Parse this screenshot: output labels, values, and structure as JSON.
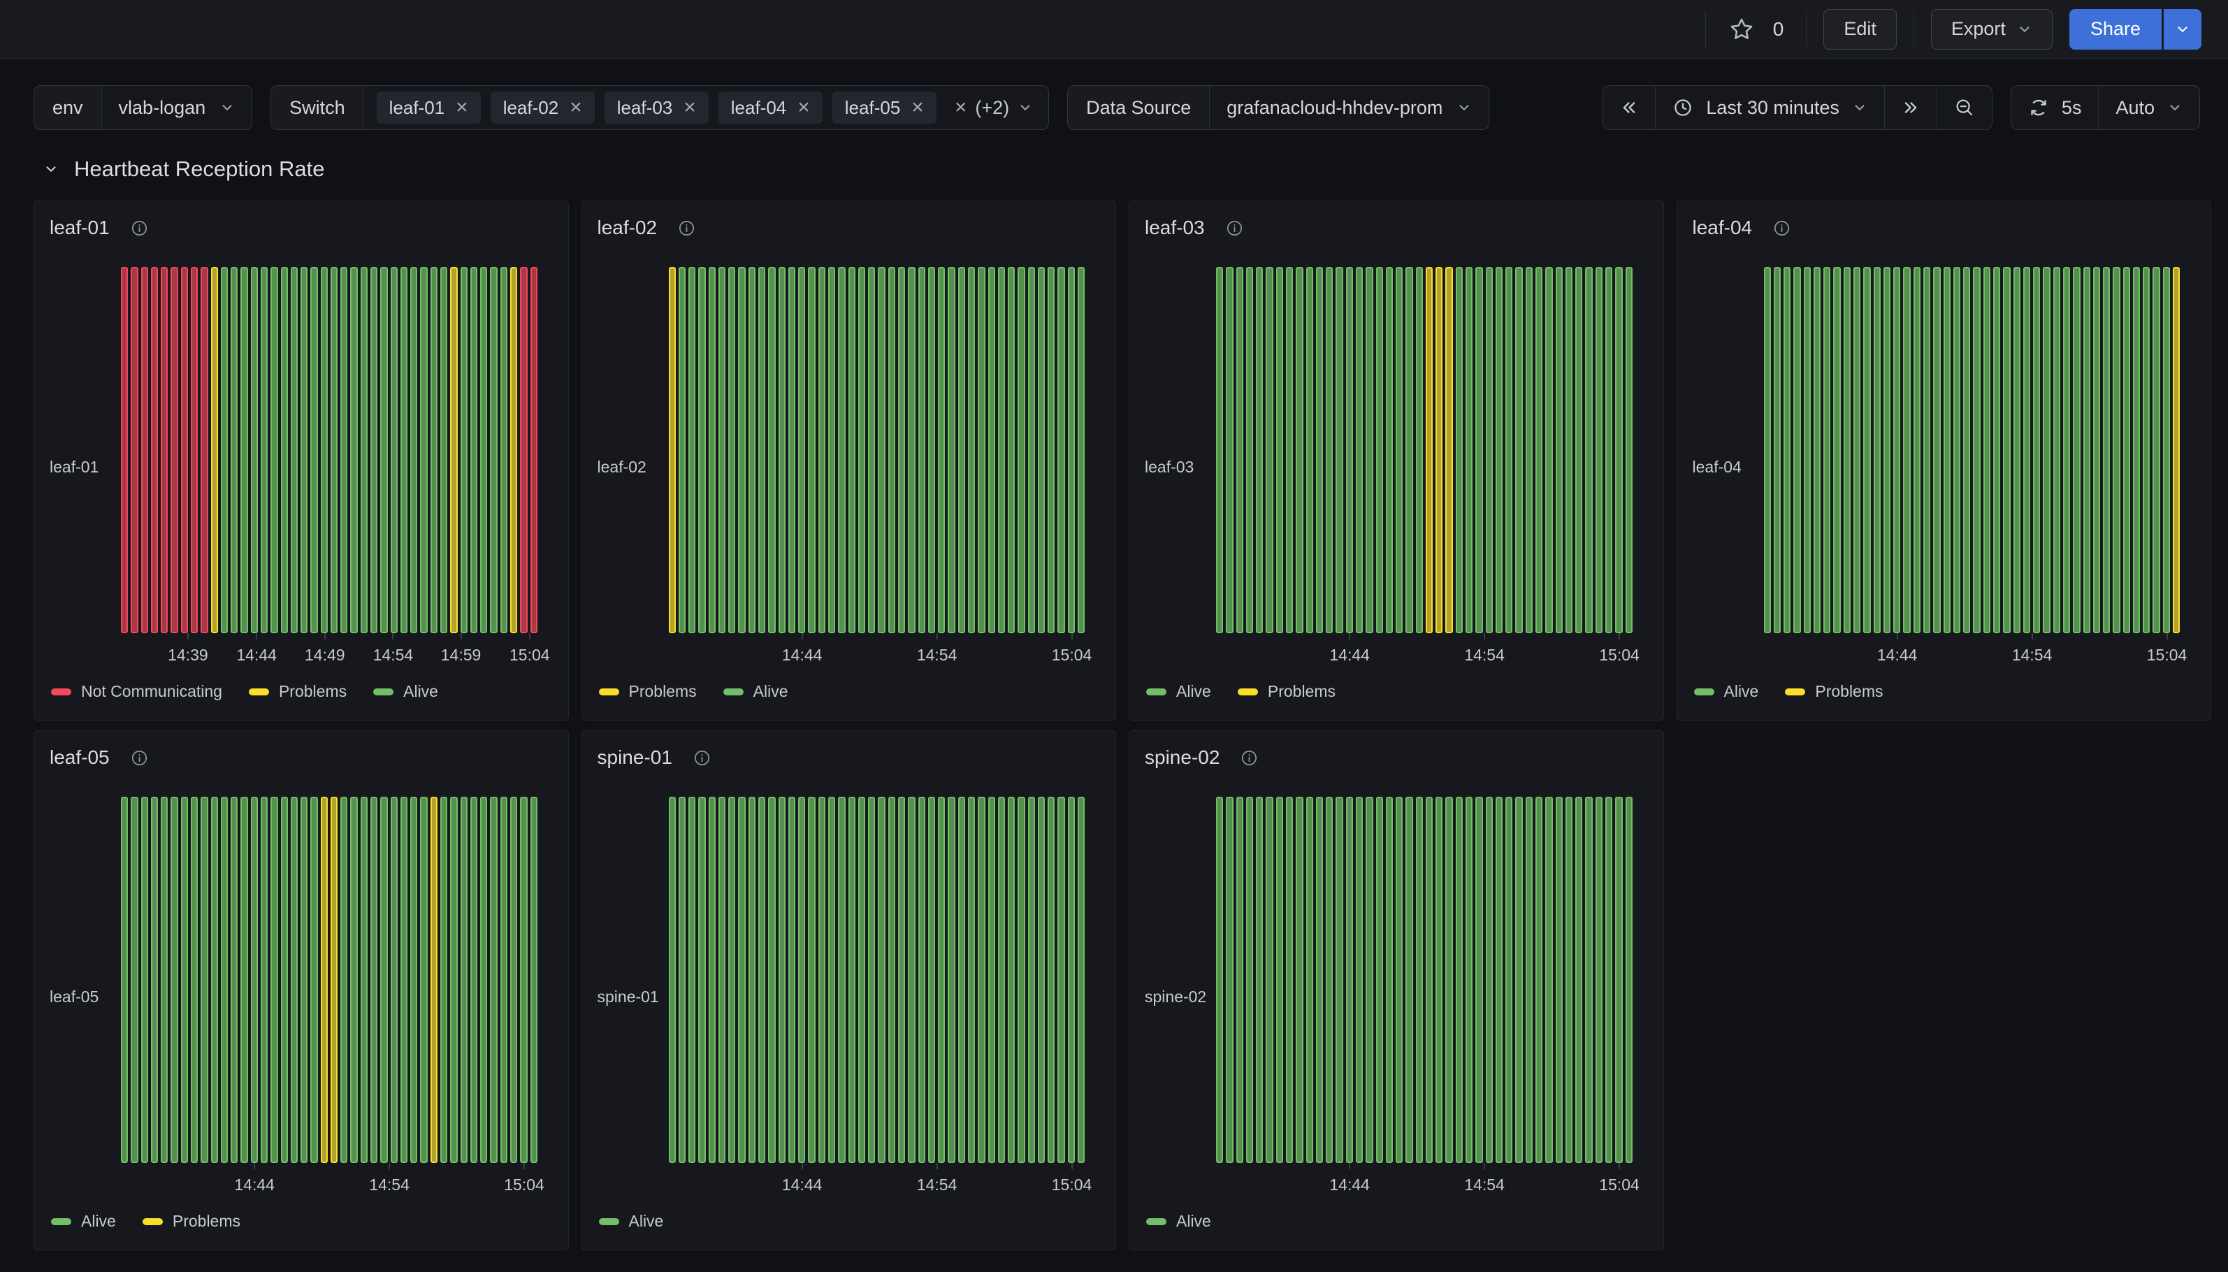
{
  "toolbar": {
    "star_count": "0",
    "edit_label": "Edit",
    "export_label": "Export",
    "share_label": "Share"
  },
  "filters": {
    "env": {
      "label": "env",
      "value": "vlab-logan"
    },
    "switch": {
      "label": "Switch",
      "tags": [
        "leaf-01",
        "leaf-02",
        "leaf-03",
        "leaf-04",
        "leaf-05"
      ],
      "more_label": "(+2)"
    },
    "datasource": {
      "label": "Data Source",
      "value": "grafanacloud-hhdev-prom"
    }
  },
  "timebar": {
    "range_label": "Last 30 minutes",
    "interval_label": "5s",
    "refresh_mode_label": "Auto"
  },
  "section": {
    "title": "Heartbeat Reception Rate"
  },
  "chart_data": {
    "type": "state-timeline",
    "time_axis": {
      "start": "14:35",
      "end": "15:05",
      "bars_per_panel": 42
    },
    "states": {
      "g": {
        "name": "Alive",
        "color": "#73BF69",
        "fill": "#55904F"
      },
      "y": {
        "name": "Problems",
        "color": "#FADE2A",
        "fill": "#B3A32C"
      },
      "r": {
        "name": "Not Communicating",
        "color": "#F2495C",
        "fill": "#A93945"
      }
    },
    "panels": [
      {
        "title": "leaf-01",
        "ylabel": "leaf-01",
        "x_ticks": [
          {
            "label": "14:39",
            "pos": 16.1
          },
          {
            "label": "14:44",
            "pos": 32.6
          },
          {
            "label": "14:49",
            "pos": 49.0
          },
          {
            "label": "14:54",
            "pos": 65.4
          },
          {
            "label": "14:59",
            "pos": 81.7
          },
          {
            "label": "15:04",
            "pos": 98.2
          }
        ],
        "legend": [
          {
            "state": "r",
            "label": "Not Communicating"
          },
          {
            "state": "y",
            "label": "Problems"
          },
          {
            "state": "g",
            "label": "Alive"
          }
        ],
        "runs": [
          [
            "r",
            9
          ],
          [
            "y",
            1
          ],
          [
            "g",
            23
          ],
          [
            "y",
            1
          ],
          [
            "g",
            5
          ],
          [
            "y",
            1
          ],
          [
            "r",
            2
          ]
        ]
      },
      {
        "title": "leaf-02",
        "ylabel": "leaf-02",
        "x_ticks": [
          {
            "label": "14:44",
            "pos": 32.1
          },
          {
            "label": "14:54",
            "pos": 64.5
          },
          {
            "label": "15:04",
            "pos": 96.9
          }
        ],
        "legend": [
          {
            "state": "y",
            "label": "Problems"
          },
          {
            "state": "g",
            "label": "Alive"
          }
        ],
        "runs": [
          [
            "y",
            1
          ],
          [
            "g",
            41
          ]
        ]
      },
      {
        "title": "leaf-03",
        "ylabel": "leaf-03",
        "x_ticks": [
          {
            "label": "14:44",
            "pos": 32.1
          },
          {
            "label": "14:54",
            "pos": 64.5
          },
          {
            "label": "15:04",
            "pos": 96.9
          }
        ],
        "legend": [
          {
            "state": "g",
            "label": "Alive"
          },
          {
            "state": "y",
            "label": "Problems"
          }
        ],
        "runs": [
          [
            "g",
            21
          ],
          [
            "y",
            3
          ],
          [
            "g",
            18
          ]
        ]
      },
      {
        "title": "leaf-04",
        "ylabel": "leaf-04",
        "x_ticks": [
          {
            "label": "14:44",
            "pos": 32.1
          },
          {
            "label": "14:54",
            "pos": 64.5
          },
          {
            "label": "15:04",
            "pos": 96.9
          }
        ],
        "legend": [
          {
            "state": "g",
            "label": "Alive"
          },
          {
            "state": "y",
            "label": "Problems"
          }
        ],
        "runs": [
          [
            "g",
            41
          ],
          [
            "y",
            1
          ]
        ]
      },
      {
        "title": "leaf-05",
        "ylabel": "leaf-05",
        "x_ticks": [
          {
            "label": "14:44",
            "pos": 32.1
          },
          {
            "label": "14:54",
            "pos": 64.5
          },
          {
            "label": "15:04",
            "pos": 96.9
          }
        ],
        "legend": [
          {
            "state": "g",
            "label": "Alive"
          },
          {
            "state": "y",
            "label": "Problems"
          }
        ],
        "runs": [
          [
            "g",
            20
          ],
          [
            "y",
            2
          ],
          [
            "g",
            9
          ],
          [
            "y",
            1
          ],
          [
            "g",
            10
          ]
        ]
      },
      {
        "title": "spine-01",
        "ylabel": "spine-01",
        "x_ticks": [
          {
            "label": "14:44",
            "pos": 32.1
          },
          {
            "label": "14:54",
            "pos": 64.5
          },
          {
            "label": "15:04",
            "pos": 96.9
          }
        ],
        "legend": [
          {
            "state": "g",
            "label": "Alive"
          }
        ],
        "runs": [
          [
            "g",
            42
          ]
        ]
      },
      {
        "title": "spine-02",
        "ylabel": "spine-02",
        "x_ticks": [
          {
            "label": "14:44",
            "pos": 32.1
          },
          {
            "label": "14:54",
            "pos": 64.5
          },
          {
            "label": "15:04",
            "pos": 96.9
          }
        ],
        "legend": [
          {
            "state": "g",
            "label": "Alive"
          }
        ],
        "runs": [
          [
            "g",
            42
          ]
        ]
      }
    ]
  }
}
